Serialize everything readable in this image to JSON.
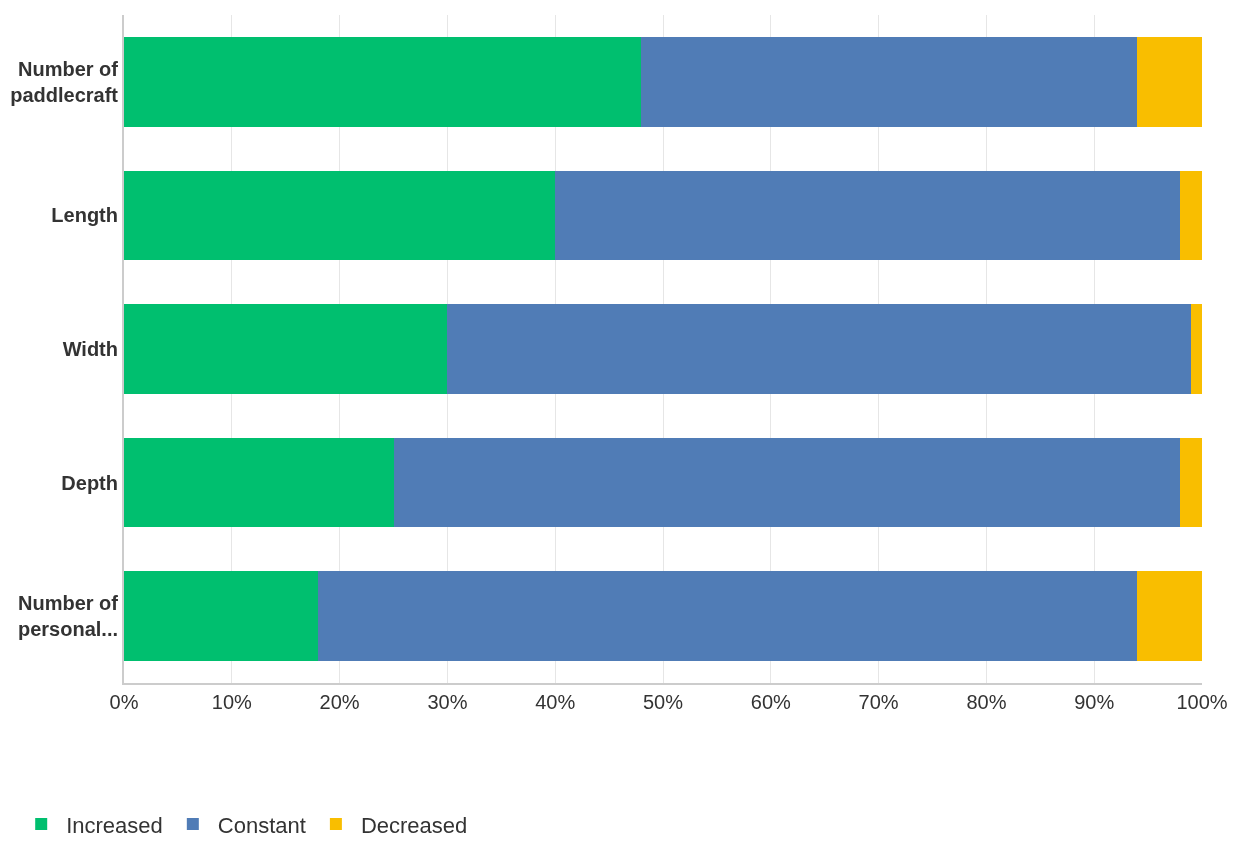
{
  "chart_data": {
    "type": "bar",
    "orientation": "horizontal",
    "stacked": true,
    "categories": [
      "Number of paddlecraft",
      "Length",
      "Width",
      "Depth",
      "Number of personal..."
    ],
    "series": [
      {
        "name": "Increased",
        "color": "#00bf6f",
        "values": [
          48,
          40,
          30,
          25,
          18
        ]
      },
      {
        "name": "Constant",
        "color": "#507cb6",
        "values": [
          46,
          58,
          69,
          73,
          76
        ]
      },
      {
        "name": "Decreased",
        "color": "#f9be00",
        "values": [
          6,
          2,
          1,
          2,
          6
        ]
      }
    ],
    "xlim": [
      0,
      100
    ],
    "xticks": [
      {
        "value": 0,
        "label": "0%"
      },
      {
        "value": 10,
        "label": "10%"
      },
      {
        "value": 20,
        "label": "20%"
      },
      {
        "value": 30,
        "label": "30%"
      },
      {
        "value": 40,
        "label": "40%"
      },
      {
        "value": 50,
        "label": "50%"
      },
      {
        "value": 60,
        "label": "60%"
      },
      {
        "value": 70,
        "label": "70%"
      },
      {
        "value": 80,
        "label": "80%"
      },
      {
        "value": 90,
        "label": "90%"
      },
      {
        "value": 100,
        "label": "100%"
      }
    ],
    "grid": "x",
    "legend": "bottom left"
  }
}
